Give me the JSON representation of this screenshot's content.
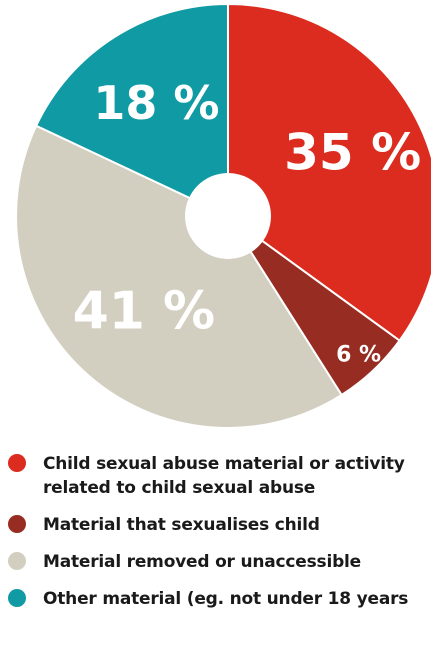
{
  "chart_data": {
    "type": "pie",
    "title": "",
    "donut": true,
    "slices": [
      {
        "label": "Child sexual abuse material or activity related to child sexual abuse",
        "value": 35,
        "display": "35 %",
        "color": "#dc2b1f"
      },
      {
        "label": "Material that sexualises child",
        "value": 6,
        "display": "6 %",
        "color": "#972c22"
      },
      {
        "label": "Material removed or unaccessible",
        "value": 41,
        "display": "41 %",
        "color": "#d3cfc0"
      },
      {
        "label": "Other material (eg. not under 18 years",
        "value": 18,
        "display": "18 %",
        "color": "#0f9aa4"
      }
    ],
    "legend_placement": "bottom"
  }
}
